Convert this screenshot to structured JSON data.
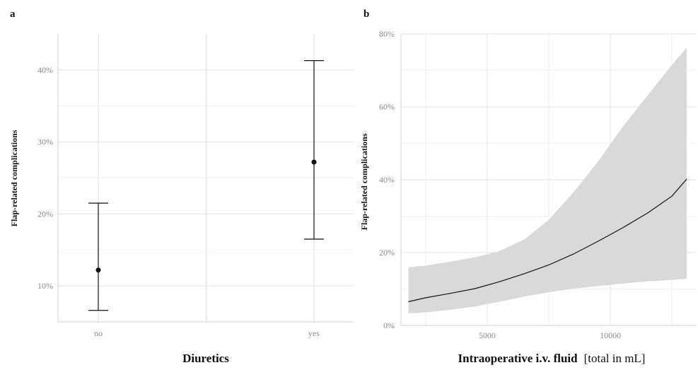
{
  "chart_data": [
    {
      "panel_label": "a",
      "type": "scatter",
      "categories": [
        "no",
        "yes"
      ],
      "estimates": [
        0.122,
        0.272
      ],
      "lower": [
        0.066,
        0.165
      ],
      "upper": [
        0.215,
        0.413
      ],
      "xlabel": "Diuretics",
      "ylabel": "Flap-related complications",
      "ylim": [
        0.05,
        0.45
      ],
      "yticks": [
        0.1,
        0.2,
        0.3,
        0.4
      ],
      "ytick_labels": [
        "10%",
        "20%",
        "30%",
        "40%"
      ],
      "grid": true
    },
    {
      "panel_label": "b",
      "type": "line",
      "x": [
        1800,
        2500,
        3500,
        4500,
        5500,
        6500,
        7500,
        8500,
        9500,
        10500,
        11500,
        12500,
        13100
      ],
      "y": [
        0.065,
        0.076,
        0.088,
        0.101,
        0.12,
        0.142,
        0.166,
        0.196,
        0.231,
        0.268,
        0.308,
        0.355,
        0.402
      ],
      "ci_low": [
        0.033,
        0.036,
        0.043,
        0.052,
        0.065,
        0.079,
        0.091,
        0.101,
        0.108,
        0.115,
        0.121,
        0.125,
        0.128
      ],
      "ci_high": [
        0.16,
        0.164,
        0.175,
        0.187,
        0.204,
        0.236,
        0.29,
        0.365,
        0.45,
        0.545,
        0.63,
        0.715,
        0.763
      ],
      "xlabel": "Intraoperative i.v. fluid",
      "xlabel_unit": "[total in mL]",
      "ylabel": "Flap-related complications",
      "xlim": [
        1500,
        13500
      ],
      "ylim": [
        0.0,
        0.8
      ],
      "xticks": [
        5000,
        10000
      ],
      "xtick_labels": [
        "5000",
        "10000"
      ],
      "yticks": [
        0.0,
        0.2,
        0.4,
        0.6,
        0.8
      ],
      "ytick_labels": [
        "0%",
        "20%",
        "40%",
        "60%",
        "80%"
      ],
      "grid": true
    }
  ]
}
